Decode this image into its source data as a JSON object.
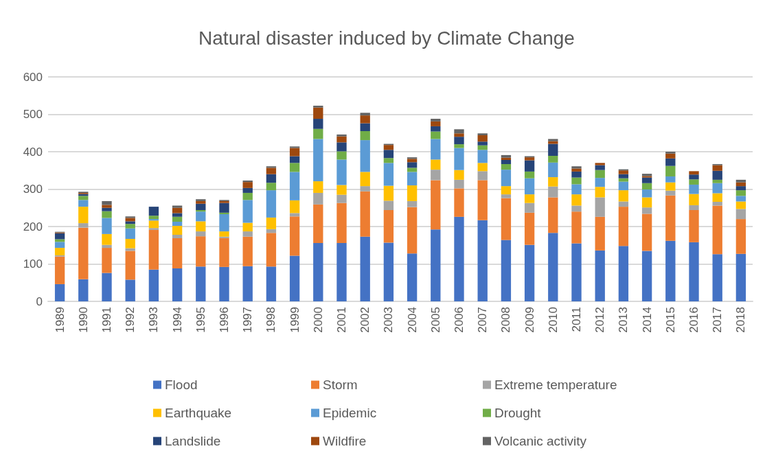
{
  "chart_data": {
    "type": "bar",
    "title": "Natural disaster induced by Climate Change",
    "stacked": true,
    "grid": "y",
    "legend": "bottom",
    "ylim": [
      0,
      600
    ],
    "yticks": [
      0,
      100,
      200,
      300,
      400,
      500,
      600
    ],
    "categories": [
      "1989",
      "1990",
      "1991",
      "1992",
      "1993",
      "1994",
      "1995",
      "1996",
      "1997",
      "1998",
      "1999",
      "2000",
      "2001",
      "2002",
      "2003",
      "2004",
      "2005",
      "2006",
      "2007",
      "2008",
      "2009",
      "2010",
      "2011",
      "2012",
      "2013",
      "2014",
      "2015",
      "2016",
      "2017",
      "2018"
    ],
    "series": [
      {
        "name": "Flood",
        "color": "#4472c4",
        "values": [
          46,
          59,
          76,
          58,
          85,
          88,
          93,
          92,
          94,
          93,
          122,
          156,
          156,
          173,
          157,
          128,
          192,
          226,
          217,
          164,
          151,
          183,
          155,
          136,
          148,
          135,
          162,
          158,
          126,
          127
        ]
      },
      {
        "name": "Storm",
        "color": "#ed7d31",
        "values": [
          74,
          138,
          67,
          77,
          106,
          81,
          81,
          77,
          79,
          90,
          105,
          103,
          107,
          121,
          87,
          124,
          132,
          76,
          107,
          112,
          86,
          95,
          85,
          90,
          105,
          99,
          121,
          86,
          130,
          93
        ]
      },
      {
        "name": "Extreme temperature",
        "color": "#a5a5a5",
        "values": [
          3,
          12,
          8,
          7,
          5,
          9,
          13,
          4,
          14,
          10,
          9,
          31,
          22,
          14,
          25,
          16,
          28,
          23,
          24,
          10,
          26,
          29,
          16,
          52,
          14,
          17,
          13,
          13,
          10,
          27
        ]
      },
      {
        "name": "Earthquake",
        "color": "#ffc000",
        "values": [
          20,
          44,
          29,
          25,
          20,
          24,
          27,
          14,
          23,
          31,
          34,
          31,
          26,
          38,
          40,
          42,
          27,
          26,
          22,
          22,
          23,
          25,
          30,
          28,
          30,
          27,
          22,
          30,
          23,
          20
        ]
      },
      {
        "name": "Epidemic",
        "color": "#5b9bd5",
        "values": [
          16,
          18,
          43,
          28,
          4,
          11,
          26,
          46,
          61,
          73,
          76,
          113,
          68,
          85,
          61,
          36,
          55,
          59,
          35,
          44,
          43,
          39,
          27,
          24,
          23,
          21,
          16,
          25,
          27,
          15
        ]
      },
      {
        "name": "Drought",
        "color": "#70ad47",
        "values": [
          7,
          11,
          18,
          12,
          9,
          13,
          4,
          4,
          19,
          20,
          24,
          27,
          22,
          24,
          13,
          11,
          20,
          10,
          12,
          15,
          18,
          18,
          18,
          21,
          9,
          17,
          28,
          14,
          9,
          15
        ]
      },
      {
        "name": "Landslide",
        "color": "#264478",
        "values": [
          16,
          5,
          9,
          7,
          24,
          10,
          17,
          26,
          13,
          23,
          18,
          27,
          24,
          21,
          22,
          15,
          14,
          20,
          10,
          11,
          30,
          32,
          16,
          13,
          11,
          15,
          20,
          13,
          24,
          11
        ]
      },
      {
        "name": "Wildfire",
        "color": "#9e480e",
        "values": [
          2,
          3,
          8,
          9,
          null,
          14,
          7,
          5,
          16,
          17,
          22,
          30,
          16,
          21,
          13,
          9,
          13,
          9,
          17,
          6,
          8,
          7,
          8,
          6,
          10,
          4,
          13,
          9,
          15,
          10
        ]
      },
      {
        "name": "Volcanic activity",
        "color": "#636363",
        "values": [
          2,
          3,
          10,
          4,
          0,
          6,
          5,
          3,
          4,
          4,
          4,
          5,
          5,
          7,
          3,
          4,
          7,
          11,
          5,
          7,
          3,
          6,
          6,
          null,
          3,
          6,
          5,
          0,
          3,
          7
        ]
      }
    ]
  }
}
